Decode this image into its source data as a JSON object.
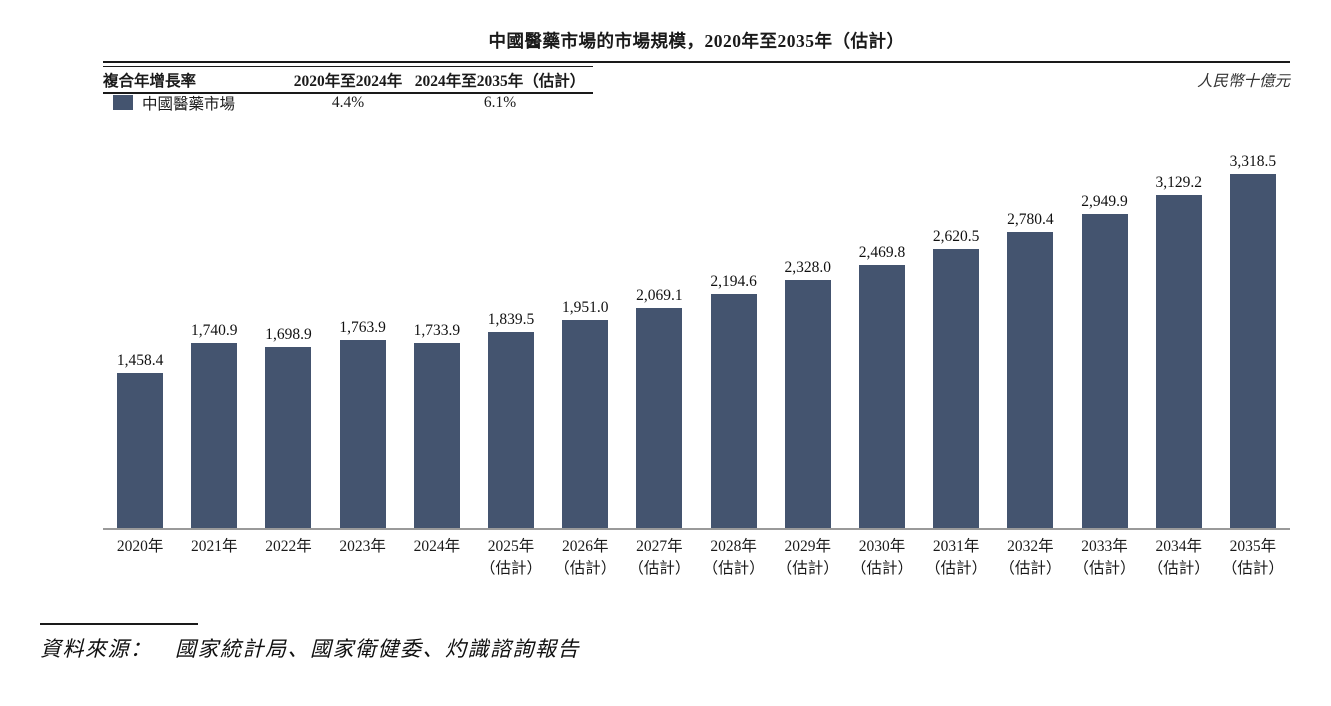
{
  "title": "中國醫藥市場的市場規模，2020年至2035年（估計）",
  "unit_label": "人民幣十億元",
  "cagr_table": {
    "header": [
      "複合年增長率",
      "2020年至2024年",
      "2024年至2035年（估計）"
    ],
    "rows": [
      {
        "label": "中國醫藥市場",
        "swatch_color": "#44546F",
        "values": [
          "4.4%",
          "6.1%"
        ]
      }
    ]
  },
  "source": "資料來源：　國家統計局、國家衛健委、灼識諮詢報告",
  "chart_data": {
    "type": "bar",
    "title": "中國醫藥市場的市場規模，2020年至2035年（估計）",
    "unit": "人民幣十億元",
    "legend": [
      {
        "name": "中國醫藥市場",
        "color": "#44546F"
      }
    ],
    "cagr": {
      "2020-2024": "4.4%",
      "2024-2035E": "6.1%"
    },
    "bar_color": "#44546F",
    "axis_color": "#9a9a9a",
    "ylim": [
      0,
      3500
    ],
    "grid": false,
    "categories": [
      "2020年",
      "2021年",
      "2022年",
      "2023年",
      "2024年",
      "2025年",
      "2026年",
      "2027年",
      "2028年",
      "2029年",
      "2030年",
      "2031年",
      "2032年",
      "2033年",
      "2034年",
      "2035年"
    ],
    "estimate_suffix": "（估計）",
    "estimate_from_index": 5,
    "values": [
      1458.4,
      1740.9,
      1698.9,
      1763.9,
      1733.9,
      1839.5,
      1951.0,
      2069.1,
      2194.6,
      2328.0,
      2469.8,
      2620.5,
      2780.4,
      2949.9,
      3129.2,
      3318.5
    ],
    "labels": [
      "1,458.4",
      "1,740.9",
      "1,698.9",
      "1,763.9",
      "1,733.9",
      "1,839.5",
      "1,951.0",
      "2,069.1",
      "2,194.6",
      "2,328.0",
      "2,469.8",
      "2,620.5",
      "2,780.4",
      "2,949.9",
      "3,129.2",
      "3,318.5"
    ]
  }
}
